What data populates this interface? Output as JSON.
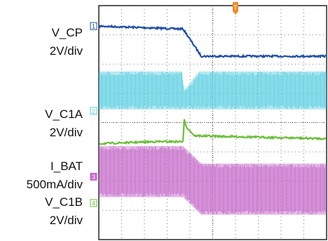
{
  "chart_data": {
    "type": "line",
    "title": "",
    "xlabel": "",
    "ylabel": "",
    "divisions": {
      "x": 10,
      "y": 8
    },
    "grid": true,
    "trigger_marker": "T",
    "ref_x_div": 6.0,
    "left_labels": {
      "vcp_name": "V_CP",
      "vcp_scale": "2V/div",
      "vc1a_name": "V_C1A",
      "vc1a_scale": "2V/div",
      "ibat_name": "I_BAT",
      "ibat_scale": "500mA/div",
      "vc1b_name": "V_C1B",
      "vc1b_scale": "2V/div"
    },
    "series": [
      {
        "channel": "1",
        "color": "#1f4fa8",
        "style": "trace",
        "x": [
          0,
          3.7,
          4.5,
          10
        ],
        "y": [
          7.3,
          7.2,
          6.27,
          6.27
        ]
      },
      {
        "channel": "2",
        "color": "#5ccfe0",
        "style": "band",
        "x": [
          0,
          3.65,
          3.75,
          4.4,
          10
        ],
        "top": [
          5.75,
          5.75,
          5.1,
          5.75,
          5.75
        ],
        "bottom": [
          4.45,
          4.45,
          4.45,
          4.45,
          4.45
        ]
      },
      {
        "channel": "3",
        "color": "#6bbf3a",
        "style": "trace",
        "x": [
          0,
          2.5,
          3.7,
          3.75,
          3.85,
          4.2,
          10
        ],
        "y": [
          3.28,
          3.35,
          3.35,
          4.1,
          3.85,
          3.55,
          3.45
        ]
      },
      {
        "channel": "4",
        "color": "#c468c8",
        "style": "band",
        "x": [
          0,
          3.7,
          4.5,
          10
        ],
        "top": [
          3.2,
          3.2,
          2.6,
          2.6
        ],
        "bottom": [
          1.45,
          1.45,
          0.85,
          0.85
        ]
      }
    ],
    "channel_markers": [
      {
        "label": "1",
        "color": "#1f4fa8",
        "level": 7.3,
        "filled": false
      },
      {
        "label": "2",
        "color": "#5ccfe0",
        "level": 4.4,
        "filled": false
      },
      {
        "label": "3",
        "color": "#c468c8",
        "level": 2.15,
        "filled": true
      },
      {
        "label": "4",
        "color": "#6bbf3a",
        "level": 1.25,
        "filled": false
      }
    ]
  }
}
